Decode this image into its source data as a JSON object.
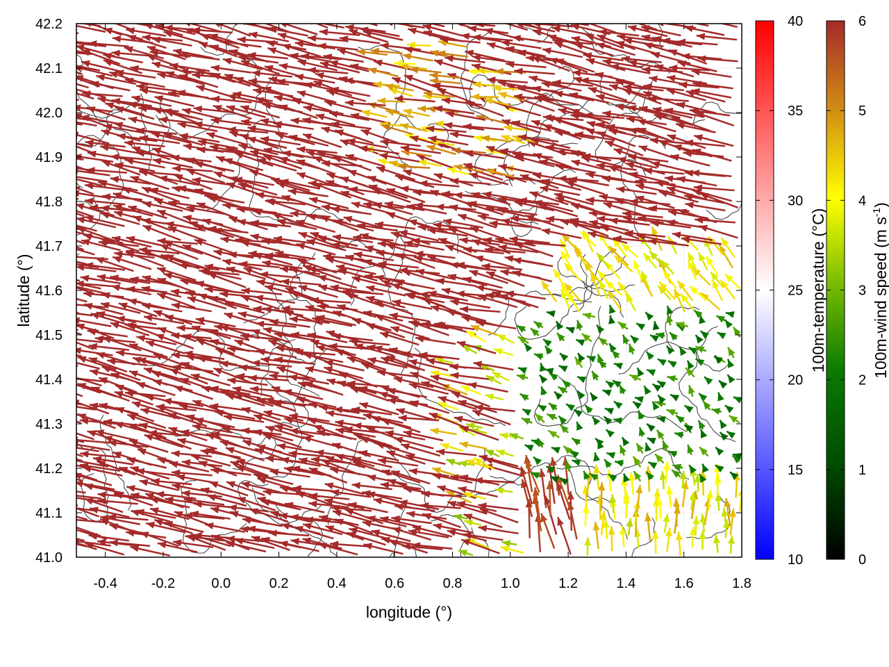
{
  "chart_data": {
    "type": "vector-field",
    "xlabel": "longitude (°)",
    "ylabel": "latitude (°)",
    "xlim": [
      -0.5,
      1.8
    ],
    "ylim": [
      41.0,
      42.2
    ],
    "x_ticks": [
      -0.4,
      -0.2,
      0.0,
      0.2,
      0.4,
      0.6,
      0.8,
      1.0,
      1.2,
      1.4,
      1.6,
      1.8
    ],
    "x_tick_labels": [
      "-0.4",
      "-0.2",
      "0.0",
      "0.2",
      "0.4",
      "0.6",
      "0.8",
      "1.0",
      "1.2",
      "1.4",
      "1.6",
      "1.8"
    ],
    "y_ticks": [
      41.0,
      41.1,
      41.2,
      41.3,
      41.4,
      41.5,
      41.6,
      41.7,
      41.8,
      41.9,
      42.0,
      42.1,
      42.2
    ],
    "y_tick_labels": [
      "41.0",
      "41.1",
      "41.2",
      "41.3",
      "41.4",
      "41.5",
      "41.6",
      "41.7",
      "41.8",
      "41.9",
      "42.0",
      "42.1",
      "42.2"
    ],
    "grid": true,
    "colorbars": [
      {
        "label": "100m-temperature (°C)",
        "range": [
          10,
          40
        ],
        "ticks": [
          10,
          15,
          20,
          25,
          30,
          35,
          40
        ],
        "tick_labels": [
          "10",
          "15",
          "20",
          "25",
          "30",
          "35",
          "40"
        ],
        "colors": [
          "#0000ff",
          "#ffffff",
          "#ff0000"
        ]
      },
      {
        "label": "100m-wind speed (m s-1)",
        "range": [
          0,
          6
        ],
        "ticks": [
          0,
          1,
          2,
          3,
          4,
          5,
          6
        ],
        "tick_labels": [
          "0",
          "1",
          "2",
          "3",
          "4",
          "5",
          "6"
        ],
        "colors": [
          "#000000",
          "#006400",
          "#80b000",
          "#ffff00",
          "#d89010",
          "#a52a2a"
        ]
      }
    ],
    "wind_regimes": [
      {
        "region": "west and north",
        "speed_ms": 6,
        "direction": "from east-southeast"
      },
      {
        "region": "northeast",
        "speed_ms": 4.5,
        "direction": "from east"
      },
      {
        "region": "east-central",
        "speed_ms": 1.5,
        "direction": "variable, southeasterly"
      },
      {
        "region": "southeast",
        "speed_ms": 4,
        "direction": "from south"
      }
    ]
  }
}
